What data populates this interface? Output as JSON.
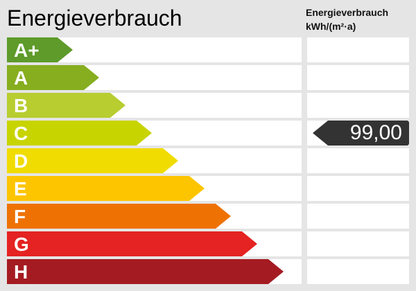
{
  "title": "Energieverbrauch",
  "header": {
    "line1": "Energieverbrauch",
    "line2": "kWh/(m²·a)"
  },
  "classes": [
    {
      "label": "A+",
      "color": "#5e9b2a"
    },
    {
      "label": "A",
      "color": "#86ae1f"
    },
    {
      "label": "B",
      "color": "#b8cd2f"
    },
    {
      "label": "C",
      "color": "#c8d400"
    },
    {
      "label": "D",
      "color": "#f0dc00"
    },
    {
      "label": "E",
      "color": "#fdc500"
    },
    {
      "label": "F",
      "color": "#ee7203"
    },
    {
      "label": "G",
      "color": "#e42322"
    },
    {
      "label": "H",
      "color": "#a51b22"
    }
  ],
  "indicator": {
    "class": "C",
    "value": "99,00",
    "color": "#333333"
  }
}
